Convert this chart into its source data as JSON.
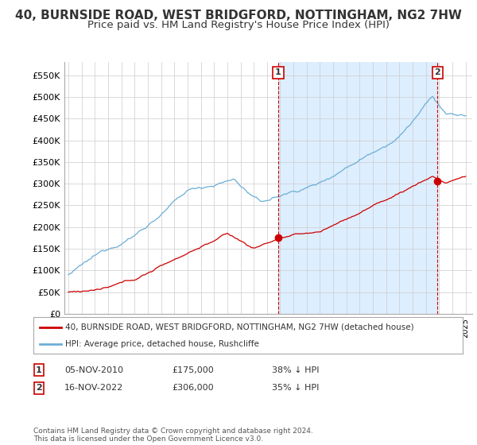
{
  "title": "40, BURNSIDE ROAD, WEST BRIDGFORD, NOTTINGHAM, NG2 7HW",
  "subtitle": "Price paid vs. HM Land Registry's House Price Index (HPI)",
  "ylabel_ticks": [
    "£0",
    "£50K",
    "£100K",
    "£150K",
    "£200K",
    "£250K",
    "£300K",
    "£350K",
    "£400K",
    "£450K",
    "£500K",
    "£550K"
  ],
  "ytick_values": [
    0,
    50000,
    100000,
    150000,
    200000,
    250000,
    300000,
    350000,
    400000,
    450000,
    500000,
    550000
  ],
  "ylim": [
    0,
    580000
  ],
  "xlim_start": 1994.7,
  "xlim_end": 2025.5,
  "hpi_color": "#6baed6",
  "hpi_fill_color": "#ddeeff",
  "price_color": "#cc0000",
  "marker1_date": 2010.85,
  "marker1_price": 175000,
  "marker1_label": "1",
  "marker2_date": 2022.88,
  "marker2_price": 306000,
  "marker2_label": "2",
  "legend_property": "40, BURNSIDE ROAD, WEST BRIDGFORD, NOTTINGHAM, NG2 7HW (detached house)",
  "legend_hpi": "HPI: Average price, detached house, Rushcliffe",
  "annotation1_date": "05-NOV-2010",
  "annotation1_price": "£175,000",
  "annotation1_pct": "38% ↓ HPI",
  "annotation2_date": "16-NOV-2022",
  "annotation2_price": "£306,000",
  "annotation2_pct": "35% ↓ HPI",
  "footer": "Contains HM Land Registry data © Crown copyright and database right 2024.\nThis data is licensed under the Open Government Licence v3.0.",
  "bg_color": "#ffffff",
  "grid_color": "#cccccc",
  "title_fontsize": 11,
  "subtitle_fontsize": 9.5
}
